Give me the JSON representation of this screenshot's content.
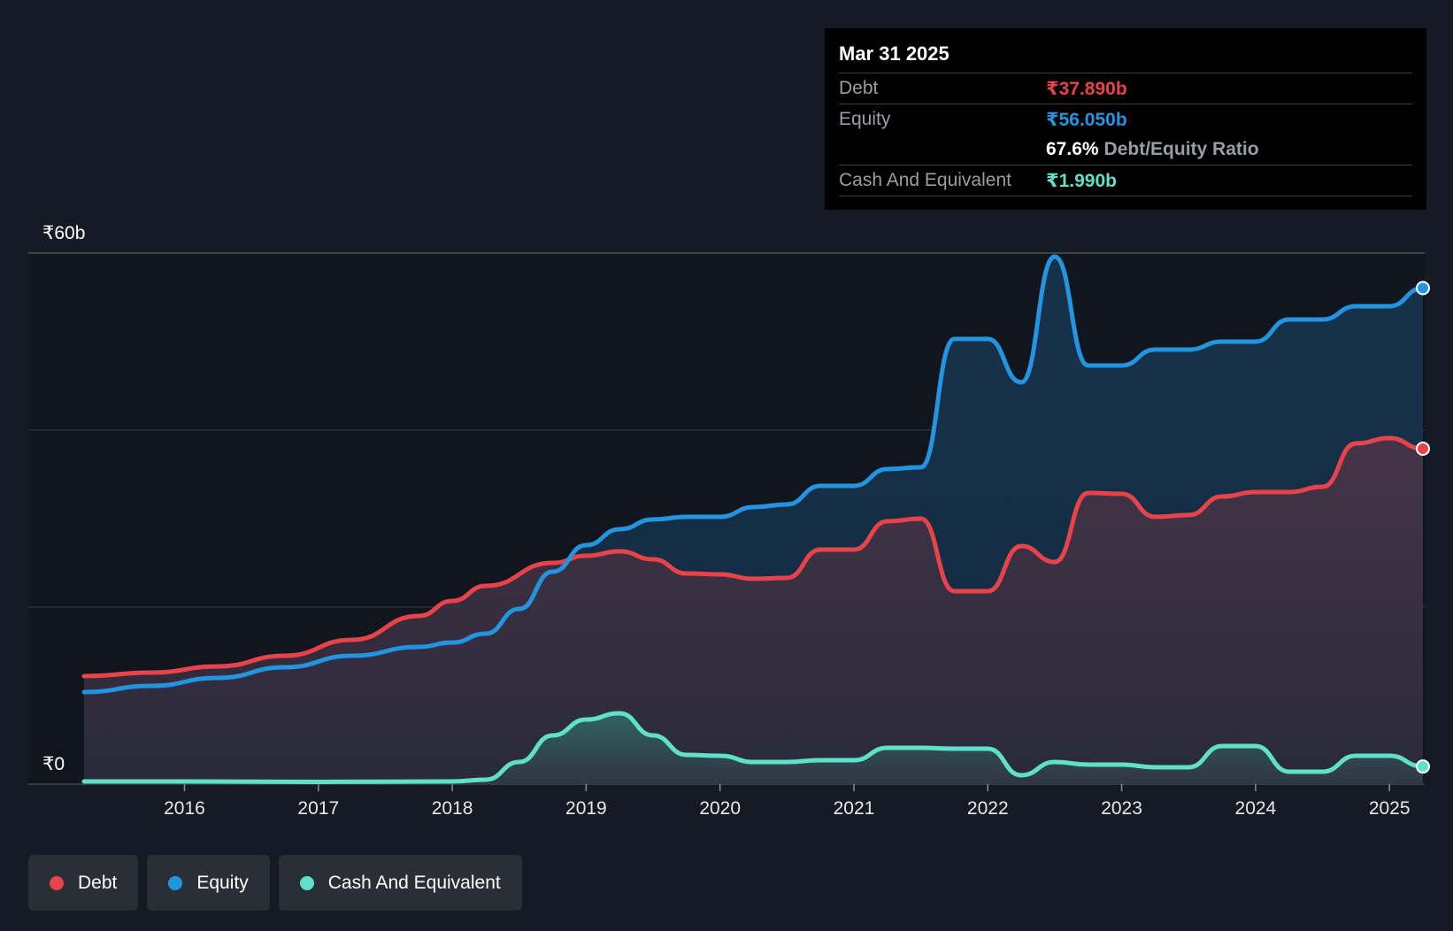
{
  "tooltip": {
    "date": "Mar 31 2025",
    "debt_label": "Debt",
    "debt_value": "₹37.890b",
    "equity_label": "Equity",
    "equity_value": "₹56.050b",
    "ratio_value": "67.6%",
    "ratio_label": "Debt/Equity Ratio",
    "cash_label": "Cash And Equivalent",
    "cash_value": "₹1.990b"
  },
  "legend": [
    {
      "label": "Debt",
      "color": "#e8434a"
    },
    {
      "label": "Equity",
      "color": "#2394e0"
    },
    {
      "label": "Cash And Equivalent",
      "color": "#5fe0c8"
    }
  ],
  "chart_data": {
    "type": "area",
    "title": "",
    "y_top_label": "₹60b",
    "y_bottom_label": "₹0",
    "ylim": [
      0,
      60
    ],
    "xlim": [
      2015.25,
      2025.25
    ],
    "x_ticks": [
      "2016",
      "2017",
      "2018",
      "2019",
      "2020",
      "2021",
      "2022",
      "2023",
      "2024",
      "2025"
    ],
    "x_tick_values": [
      2016,
      2017,
      2018,
      2019,
      2020,
      2021,
      2022,
      2023,
      2024,
      2025
    ],
    "series": [
      {
        "name": "Debt",
        "color": "#e8434a",
        "points": [
          [
            2015.25,
            12.2
          ],
          [
            2015.75,
            12.6
          ],
          [
            2016.25,
            13.3
          ],
          [
            2016.75,
            14.5
          ],
          [
            2017.25,
            16.3
          ],
          [
            2017.75,
            19.0
          ],
          [
            2018.0,
            20.7
          ],
          [
            2018.25,
            22.4
          ],
          [
            2018.75,
            25.0
          ],
          [
            2019.0,
            25.8
          ],
          [
            2019.25,
            26.3
          ],
          [
            2019.5,
            25.4
          ],
          [
            2019.75,
            23.8
          ],
          [
            2020.0,
            23.7
          ],
          [
            2020.25,
            23.2
          ],
          [
            2020.5,
            23.3
          ],
          [
            2020.75,
            26.5
          ],
          [
            2021.0,
            26.5
          ],
          [
            2021.25,
            29.7
          ],
          [
            2021.5,
            30.0
          ],
          [
            2021.75,
            21.8
          ],
          [
            2022.0,
            21.8
          ],
          [
            2022.25,
            26.9
          ],
          [
            2022.5,
            25.1
          ],
          [
            2022.75,
            32.9
          ],
          [
            2023.0,
            32.8
          ],
          [
            2023.25,
            30.2
          ],
          [
            2023.5,
            30.4
          ],
          [
            2023.75,
            32.5
          ],
          [
            2024.0,
            33.0
          ],
          [
            2024.25,
            33.0
          ],
          [
            2024.5,
            33.6
          ],
          [
            2024.75,
            38.5
          ],
          [
            2025.0,
            39.1
          ],
          [
            2025.25,
            37.9
          ]
        ]
      },
      {
        "name": "Equity",
        "color": "#2394e0",
        "points": [
          [
            2015.25,
            10.4
          ],
          [
            2015.75,
            11.1
          ],
          [
            2016.25,
            12.0
          ],
          [
            2016.75,
            13.2
          ],
          [
            2017.25,
            14.5
          ],
          [
            2017.75,
            15.5
          ],
          [
            2018.0,
            16.0
          ],
          [
            2018.25,
            17.0
          ],
          [
            2018.5,
            19.8
          ],
          [
            2018.75,
            24.0
          ],
          [
            2019.0,
            27.0
          ],
          [
            2019.25,
            28.8
          ],
          [
            2019.5,
            29.9
          ],
          [
            2019.75,
            30.2
          ],
          [
            2020.0,
            30.2
          ],
          [
            2020.25,
            31.3
          ],
          [
            2020.5,
            31.6
          ],
          [
            2020.75,
            33.7
          ],
          [
            2021.0,
            33.7
          ],
          [
            2021.25,
            35.6
          ],
          [
            2021.5,
            35.8
          ],
          [
            2021.75,
            50.3
          ],
          [
            2022.0,
            50.3
          ],
          [
            2022.25,
            45.4
          ],
          [
            2022.5,
            59.6
          ],
          [
            2022.75,
            47.3
          ],
          [
            2023.0,
            47.3
          ],
          [
            2023.25,
            49.1
          ],
          [
            2023.5,
            49.1
          ],
          [
            2023.75,
            50.0
          ],
          [
            2024.0,
            50.0
          ],
          [
            2024.25,
            52.5
          ],
          [
            2024.5,
            52.5
          ],
          [
            2024.75,
            54.0
          ],
          [
            2025.0,
            54.0
          ],
          [
            2025.25,
            56.05
          ]
        ]
      },
      {
        "name": "Cash And Equivalent",
        "color": "#5fe0c8",
        "points": [
          [
            2015.25,
            0.3
          ],
          [
            2016.0,
            0.3
          ],
          [
            2017.0,
            0.25
          ],
          [
            2018.0,
            0.3
          ],
          [
            2018.25,
            0.5
          ],
          [
            2018.5,
            2.5
          ],
          [
            2018.75,
            5.5
          ],
          [
            2019.0,
            7.3
          ],
          [
            2019.25,
            8.0
          ],
          [
            2019.5,
            5.5
          ],
          [
            2019.75,
            3.3
          ],
          [
            2020.0,
            3.2
          ],
          [
            2020.25,
            2.5
          ],
          [
            2020.5,
            2.5
          ],
          [
            2020.75,
            2.7
          ],
          [
            2021.0,
            2.7
          ],
          [
            2021.25,
            4.1
          ],
          [
            2021.5,
            4.1
          ],
          [
            2021.75,
            4.0
          ],
          [
            2022.0,
            4.0
          ],
          [
            2022.25,
            1.0
          ],
          [
            2022.5,
            2.5
          ],
          [
            2022.75,
            2.2
          ],
          [
            2023.0,
            2.2
          ],
          [
            2023.25,
            1.9
          ],
          [
            2023.5,
            1.9
          ],
          [
            2023.75,
            4.3
          ],
          [
            2024.0,
            4.3
          ],
          [
            2024.25,
            1.4
          ],
          [
            2024.5,
            1.4
          ],
          [
            2024.75,
            3.2
          ],
          [
            2025.0,
            3.2
          ],
          [
            2025.25,
            1.99
          ]
        ]
      }
    ]
  }
}
